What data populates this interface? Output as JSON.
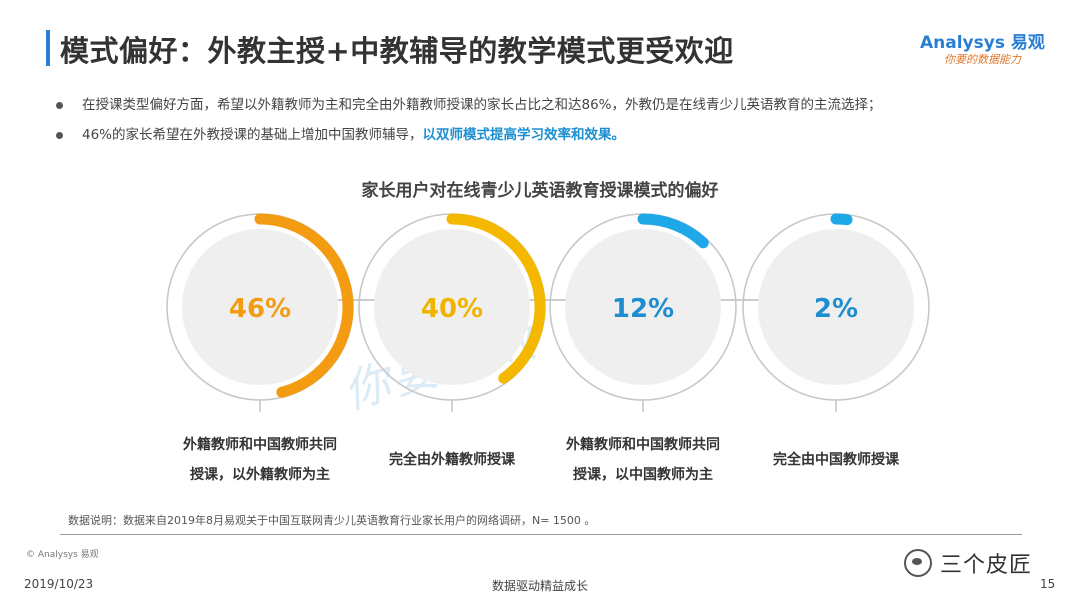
{
  "title": "模式偏好：外教主授+中教辅导的教学模式更受欢迎",
  "logo": {
    "brand": "Analysys 易观",
    "slogan": "你要的数据能力"
  },
  "bullets": [
    {
      "text": "在授课类型偏好方面，希望以外籍教师为主和完全由外籍教师授课的家长占比之和达86%，外教仍是在线青少儿英语教育的主流选择；",
      "highlight": ""
    },
    {
      "text": "46%的家长希望在外教授课的基础上增加中国教师辅导，",
      "highlight": "以双师模式提高学习效率和效果。"
    }
  ],
  "chart_data": {
    "type": "pie",
    "title": "家长用户对在线青少儿英语教育授课模式的偏好",
    "unit": "%",
    "categories": [
      "外籍教师和中国教师共同授课，以外籍教师为主",
      "完全由外籍教师授课",
      "外籍教师和中国教师共同授课，以中国教师为主",
      "完全由中国教师授课"
    ],
    "values": [
      46,
      40,
      12,
      2
    ],
    "value_labels": [
      "46%",
      "40%",
      "12%",
      "2%"
    ],
    "label_lines": [
      [
        "外籍教师和中国教师共同",
        "授课，以外籍教师为主"
      ],
      [
        "完全由外籍教师授课"
      ],
      [
        "外籍教师和中国教师共同",
        "授课，以中国教师为主"
      ],
      [
        "完全由中国教师授课"
      ]
    ],
    "colors": [
      "#f39c12",
      "#f5b800",
      "#1ea8e8",
      "#1ea8e8"
    ],
    "value_text_colors": [
      "#f39c12",
      "#f0b400",
      "#1d8fd0",
      "#1d8fd0"
    ]
  },
  "note": "数据说明：数据来自2019年8月易观关于中国互联网青少儿英语教育行业家长用户的网络调研，N= 1500 。",
  "copyright": "© Analysys 易观",
  "watermark": "你要的数",
  "footer": {
    "date": "2019/10/23",
    "center": "数据驱动精益成长",
    "page": "15"
  },
  "badge": {
    "text": "三个皮匠"
  }
}
